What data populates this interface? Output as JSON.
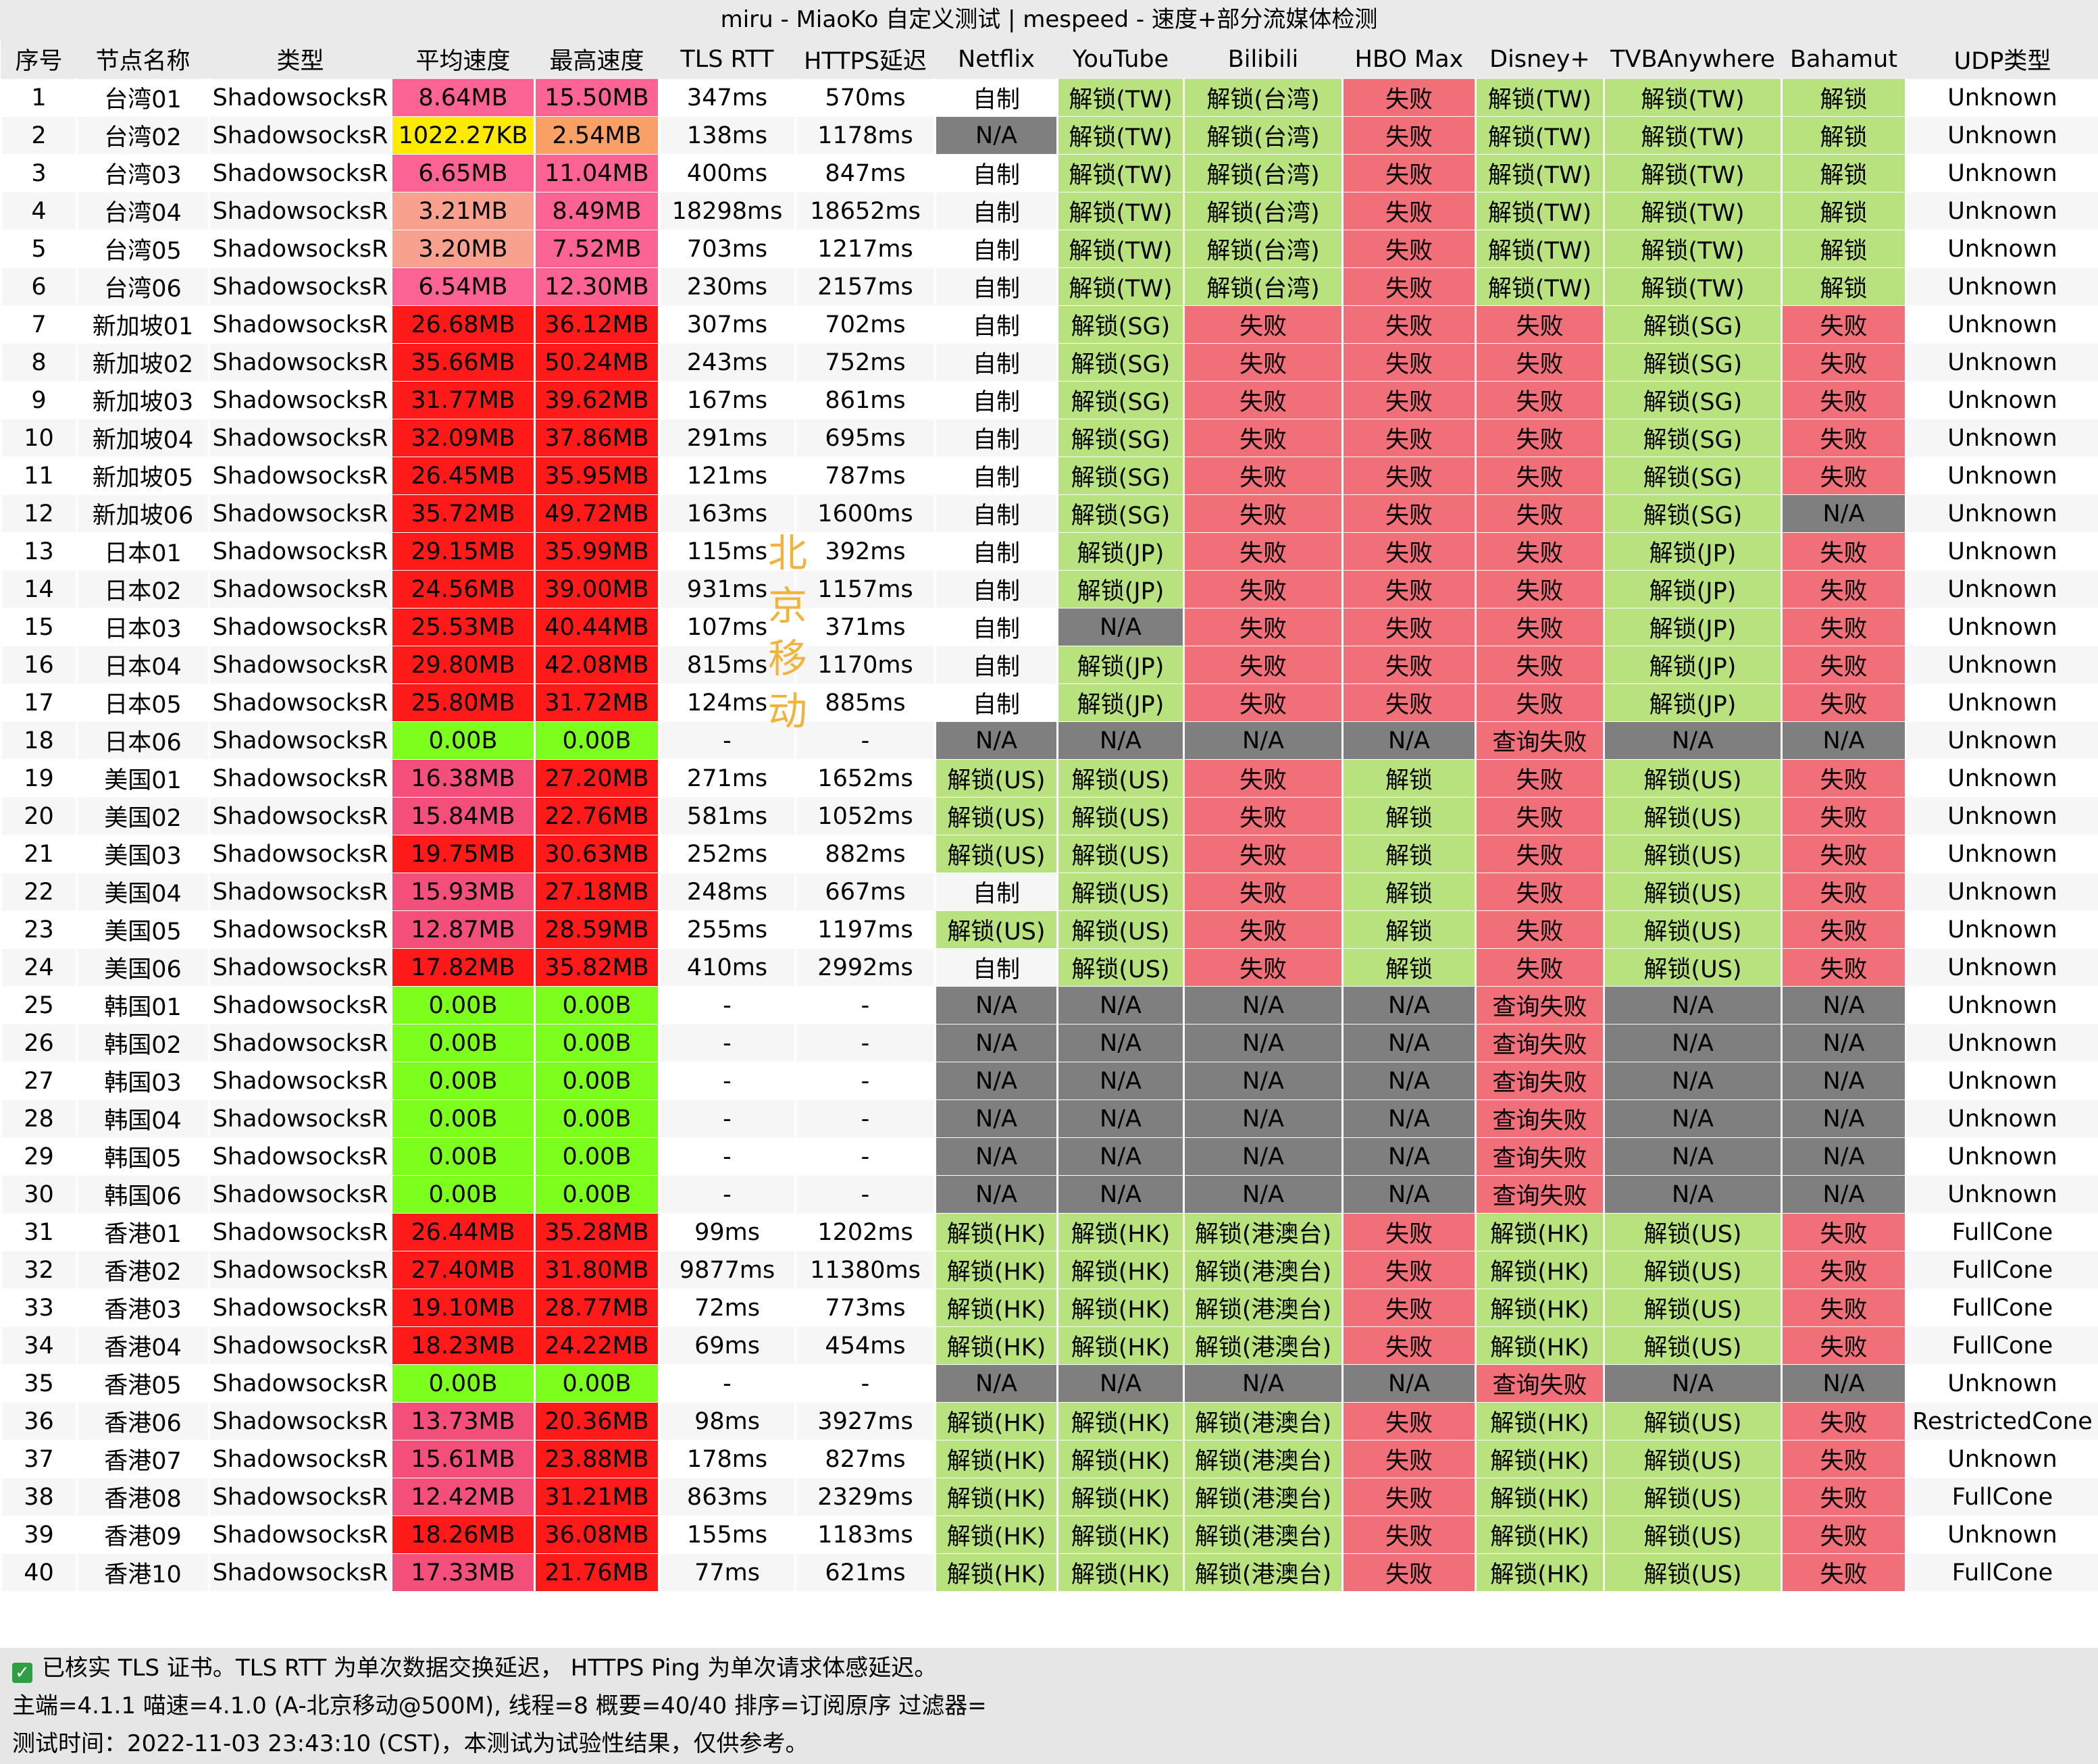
{
  "window": {
    "title": "miru - MiaoKo 自定义测试 | mespeed - 速度+部分流媒体检测"
  },
  "table": {
    "headers": [
      "序号",
      "节点名称",
      "类型",
      "平均速度",
      "最高速度",
      "TLS RTT",
      "HTTPS延迟",
      "Netflix",
      "YouTube",
      "Bilibili",
      "HBO Max",
      "Disney+",
      "TVBAnywhere",
      "Bahamut",
      "UDP类型"
    ],
    "rows": [
      [
        "1",
        "台湾01",
        "ShadowsocksR",
        "8.64MB",
        "15.50MB",
        "347ms",
        "570ms",
        "自制",
        "解锁(TW)",
        "解锁(台湾)",
        "失败",
        "解锁(TW)",
        "解锁(TW)",
        "解锁",
        "Unknown"
      ],
      [
        "2",
        "台湾02",
        "ShadowsocksR",
        "1022.27KB",
        "2.54MB",
        "138ms",
        "1178ms",
        "N/A",
        "解锁(TW)",
        "解锁(台湾)",
        "失败",
        "解锁(TW)",
        "解锁(TW)",
        "解锁",
        "Unknown"
      ],
      [
        "3",
        "台湾03",
        "ShadowsocksR",
        "6.65MB",
        "11.04MB",
        "400ms",
        "847ms",
        "自制",
        "解锁(TW)",
        "解锁(台湾)",
        "失败",
        "解锁(TW)",
        "解锁(TW)",
        "解锁",
        "Unknown"
      ],
      [
        "4",
        "台湾04",
        "ShadowsocksR",
        "3.21MB",
        "8.49MB",
        "18298ms",
        "18652ms",
        "自制",
        "解锁(TW)",
        "解锁(台湾)",
        "失败",
        "解锁(TW)",
        "解锁(TW)",
        "解锁",
        "Unknown"
      ],
      [
        "5",
        "台湾05",
        "ShadowsocksR",
        "3.20MB",
        "7.52MB",
        "703ms",
        "1217ms",
        "自制",
        "解锁(TW)",
        "解锁(台湾)",
        "失败",
        "解锁(TW)",
        "解锁(TW)",
        "解锁",
        "Unknown"
      ],
      [
        "6",
        "台湾06",
        "ShadowsocksR",
        "6.54MB",
        "12.30MB",
        "230ms",
        "2157ms",
        "自制",
        "解锁(TW)",
        "解锁(台湾)",
        "失败",
        "解锁(TW)",
        "解锁(TW)",
        "解锁",
        "Unknown"
      ],
      [
        "7",
        "新加坡01",
        "ShadowsocksR",
        "26.68MB",
        "36.12MB",
        "307ms",
        "702ms",
        "自制",
        "解锁(SG)",
        "失败",
        "失败",
        "失败",
        "解锁(SG)",
        "失败",
        "Unknown"
      ],
      [
        "8",
        "新加坡02",
        "ShadowsocksR",
        "35.66MB",
        "50.24MB",
        "243ms",
        "752ms",
        "自制",
        "解锁(SG)",
        "失败",
        "失败",
        "失败",
        "解锁(SG)",
        "失败",
        "Unknown"
      ],
      [
        "9",
        "新加坡03",
        "ShadowsocksR",
        "31.77MB",
        "39.62MB",
        "167ms",
        "861ms",
        "自制",
        "解锁(SG)",
        "失败",
        "失败",
        "失败",
        "解锁(SG)",
        "失败",
        "Unknown"
      ],
      [
        "10",
        "新加坡04",
        "ShadowsocksR",
        "32.09MB",
        "37.86MB",
        "291ms",
        "695ms",
        "自制",
        "解锁(SG)",
        "失败",
        "失败",
        "失败",
        "解锁(SG)",
        "失败",
        "Unknown"
      ],
      [
        "11",
        "新加坡05",
        "ShadowsocksR",
        "26.45MB",
        "35.95MB",
        "121ms",
        "787ms",
        "自制",
        "解锁(SG)",
        "失败",
        "失败",
        "失败",
        "解锁(SG)",
        "失败",
        "Unknown"
      ],
      [
        "12",
        "新加坡06",
        "ShadowsocksR",
        "35.72MB",
        "49.72MB",
        "163ms",
        "1600ms",
        "自制",
        "解锁(SG)",
        "失败",
        "失败",
        "失败",
        "解锁(SG)",
        "N/A",
        "Unknown"
      ],
      [
        "13",
        "日本01",
        "ShadowsocksR",
        "29.15MB",
        "35.99MB",
        "115ms",
        "392ms",
        "自制",
        "解锁(JP)",
        "失败",
        "失败",
        "失败",
        "解锁(JP)",
        "失败",
        "Unknown"
      ],
      [
        "14",
        "日本02",
        "ShadowsocksR",
        "24.56MB",
        "39.00MB",
        "931ms",
        "1157ms",
        "自制",
        "解锁(JP)",
        "失败",
        "失败",
        "失败",
        "解锁(JP)",
        "失败",
        "Unknown"
      ],
      [
        "15",
        "日本03",
        "ShadowsocksR",
        "25.53MB",
        "40.44MB",
        "107ms",
        "371ms",
        "自制",
        "N/A",
        "失败",
        "失败",
        "失败",
        "解锁(JP)",
        "失败",
        "Unknown"
      ],
      [
        "16",
        "日本04",
        "ShadowsocksR",
        "29.80MB",
        "42.08MB",
        "815ms",
        "1170ms",
        "自制",
        "解锁(JP)",
        "失败",
        "失败",
        "失败",
        "解锁(JP)",
        "失败",
        "Unknown"
      ],
      [
        "17",
        "日本05",
        "ShadowsocksR",
        "25.80MB",
        "31.72MB",
        "124ms",
        "885ms",
        "自制",
        "解锁(JP)",
        "失败",
        "失败",
        "失败",
        "解锁(JP)",
        "失败",
        "Unknown"
      ],
      [
        "18",
        "日本06",
        "ShadowsocksR",
        "0.00B",
        "0.00B",
        "-",
        "-",
        "N/A",
        "N/A",
        "N/A",
        "N/A",
        "查询失败",
        "N/A",
        "N/A",
        "Unknown"
      ],
      [
        "19",
        "美国01",
        "ShadowsocksR",
        "16.38MB",
        "27.20MB",
        "271ms",
        "1652ms",
        "解锁(US)",
        "解锁(US)",
        "失败",
        "解锁",
        "失败",
        "解锁(US)",
        "失败",
        "Unknown"
      ],
      [
        "20",
        "美国02",
        "ShadowsocksR",
        "15.84MB",
        "22.76MB",
        "581ms",
        "1052ms",
        "解锁(US)",
        "解锁(US)",
        "失败",
        "解锁",
        "失败",
        "解锁(US)",
        "失败",
        "Unknown"
      ],
      [
        "21",
        "美国03",
        "ShadowsocksR",
        "19.75MB",
        "30.63MB",
        "252ms",
        "882ms",
        "解锁(US)",
        "解锁(US)",
        "失败",
        "解锁",
        "失败",
        "解锁(US)",
        "失败",
        "Unknown"
      ],
      [
        "22",
        "美国04",
        "ShadowsocksR",
        "15.93MB",
        "27.18MB",
        "248ms",
        "667ms",
        "自制",
        "解锁(US)",
        "失败",
        "解锁",
        "失败",
        "解锁(US)",
        "失败",
        "Unknown"
      ],
      [
        "23",
        "美国05",
        "ShadowsocksR",
        "12.87MB",
        "28.59MB",
        "255ms",
        "1197ms",
        "解锁(US)",
        "解锁(US)",
        "失败",
        "解锁",
        "失败",
        "解锁(US)",
        "失败",
        "Unknown"
      ],
      [
        "24",
        "美国06",
        "ShadowsocksR",
        "17.82MB",
        "35.82MB",
        "410ms",
        "2992ms",
        "自制",
        "解锁(US)",
        "失败",
        "解锁",
        "失败",
        "解锁(US)",
        "失败",
        "Unknown"
      ],
      [
        "25",
        "韩国01",
        "ShadowsocksR",
        "0.00B",
        "0.00B",
        "-",
        "-",
        "N/A",
        "N/A",
        "N/A",
        "N/A",
        "查询失败",
        "N/A",
        "N/A",
        "Unknown"
      ],
      [
        "26",
        "韩国02",
        "ShadowsocksR",
        "0.00B",
        "0.00B",
        "-",
        "-",
        "N/A",
        "N/A",
        "N/A",
        "N/A",
        "查询失败",
        "N/A",
        "N/A",
        "Unknown"
      ],
      [
        "27",
        "韩国03",
        "ShadowsocksR",
        "0.00B",
        "0.00B",
        "-",
        "-",
        "N/A",
        "N/A",
        "N/A",
        "N/A",
        "查询失败",
        "N/A",
        "N/A",
        "Unknown"
      ],
      [
        "28",
        "韩国04",
        "ShadowsocksR",
        "0.00B",
        "0.00B",
        "-",
        "-",
        "N/A",
        "N/A",
        "N/A",
        "N/A",
        "查询失败",
        "N/A",
        "N/A",
        "Unknown"
      ],
      [
        "29",
        "韩国05",
        "ShadowsocksR",
        "0.00B",
        "0.00B",
        "-",
        "-",
        "N/A",
        "N/A",
        "N/A",
        "N/A",
        "查询失败",
        "N/A",
        "N/A",
        "Unknown"
      ],
      [
        "30",
        "韩国06",
        "ShadowsocksR",
        "0.00B",
        "0.00B",
        "-",
        "-",
        "N/A",
        "N/A",
        "N/A",
        "N/A",
        "查询失败",
        "N/A",
        "N/A",
        "Unknown"
      ],
      [
        "31",
        "香港01",
        "ShadowsocksR",
        "26.44MB",
        "35.28MB",
        "99ms",
        "1202ms",
        "解锁(HK)",
        "解锁(HK)",
        "解锁(港澳台)",
        "失败",
        "解锁(HK)",
        "解锁(US)",
        "失败",
        "FullCone"
      ],
      [
        "32",
        "香港02",
        "ShadowsocksR",
        "27.40MB",
        "31.80MB",
        "9877ms",
        "11380ms",
        "解锁(HK)",
        "解锁(HK)",
        "解锁(港澳台)",
        "失败",
        "解锁(HK)",
        "解锁(US)",
        "失败",
        "FullCone"
      ],
      [
        "33",
        "香港03",
        "ShadowsocksR",
        "19.10MB",
        "28.77MB",
        "72ms",
        "773ms",
        "解锁(HK)",
        "解锁(HK)",
        "解锁(港澳台)",
        "失败",
        "解锁(HK)",
        "解锁(US)",
        "失败",
        "FullCone"
      ],
      [
        "34",
        "香港04",
        "ShadowsocksR",
        "18.23MB",
        "24.22MB",
        "69ms",
        "454ms",
        "解锁(HK)",
        "解锁(HK)",
        "解锁(港澳台)",
        "失败",
        "解锁(HK)",
        "解锁(US)",
        "失败",
        "FullCone"
      ],
      [
        "35",
        "香港05",
        "ShadowsocksR",
        "0.00B",
        "0.00B",
        "-",
        "-",
        "N/A",
        "N/A",
        "N/A",
        "N/A",
        "查询失败",
        "N/A",
        "N/A",
        "Unknown"
      ],
      [
        "36",
        "香港06",
        "ShadowsocksR",
        "13.73MB",
        "20.36MB",
        "98ms",
        "3927ms",
        "解锁(HK)",
        "解锁(HK)",
        "解锁(港澳台)",
        "失败",
        "解锁(HK)",
        "解锁(US)",
        "失败",
        "RestrictedCone"
      ],
      [
        "37",
        "香港07",
        "ShadowsocksR",
        "15.61MB",
        "23.88MB",
        "178ms",
        "827ms",
        "解锁(HK)",
        "解锁(HK)",
        "解锁(港澳台)",
        "失败",
        "解锁(HK)",
        "解锁(US)",
        "失败",
        "Unknown"
      ],
      [
        "38",
        "香港08",
        "ShadowsocksR",
        "12.42MB",
        "31.21MB",
        "863ms",
        "2329ms",
        "解锁(HK)",
        "解锁(HK)",
        "解锁(港澳台)",
        "失败",
        "解锁(HK)",
        "解锁(US)",
        "失败",
        "FullCone"
      ],
      [
        "39",
        "香港09",
        "ShadowsocksR",
        "18.26MB",
        "36.08MB",
        "155ms",
        "1183ms",
        "解锁(HK)",
        "解锁(HK)",
        "解锁(港澳台)",
        "失败",
        "解锁(HK)",
        "解锁(US)",
        "失败",
        "Unknown"
      ],
      [
        "40",
        "香港10",
        "ShadowsocksR",
        "17.33MB",
        "21.76MB",
        "77ms",
        "621ms",
        "解锁(HK)",
        "解锁(HK)",
        "解锁(港澳台)",
        "失败",
        "解锁(HK)",
        "解锁(US)",
        "失败",
        "FullCone"
      ]
    ]
  },
  "colors": {
    "speed_high": "#ff1a1a",
    "speed_pink": "#f44f7b",
    "speed_hot": "#fa6394",
    "speed_salmon": "#f9a18f",
    "speed_orange": "#f8a066",
    "speed_yellow": "#ffeb00",
    "speed_zero": "#7dff1e",
    "status_unlocked": "#b7e27e",
    "status_failed": "#f06f78",
    "status_na": "#7f7f7f",
    "watermark": "#f2b33d"
  },
  "watermark": {
    "text": "北京移动"
  },
  "footer": {
    "check_icon": "check-icon",
    "line1": "已核实 TLS 证书。TLS RTT 为单次数据交换延迟， HTTPS Ping 为单次请求体感延迟。",
    "line2": "主端=4.1.1 喵速=4.1.0 (A-北京移动@500M), 线程=8 概要=40/40 排序=订阅原序 过滤器=",
    "line3": "测试时间：2022-11-03 23:43:10 (CST)，本测试为试验性结果，仅供参考。"
  }
}
